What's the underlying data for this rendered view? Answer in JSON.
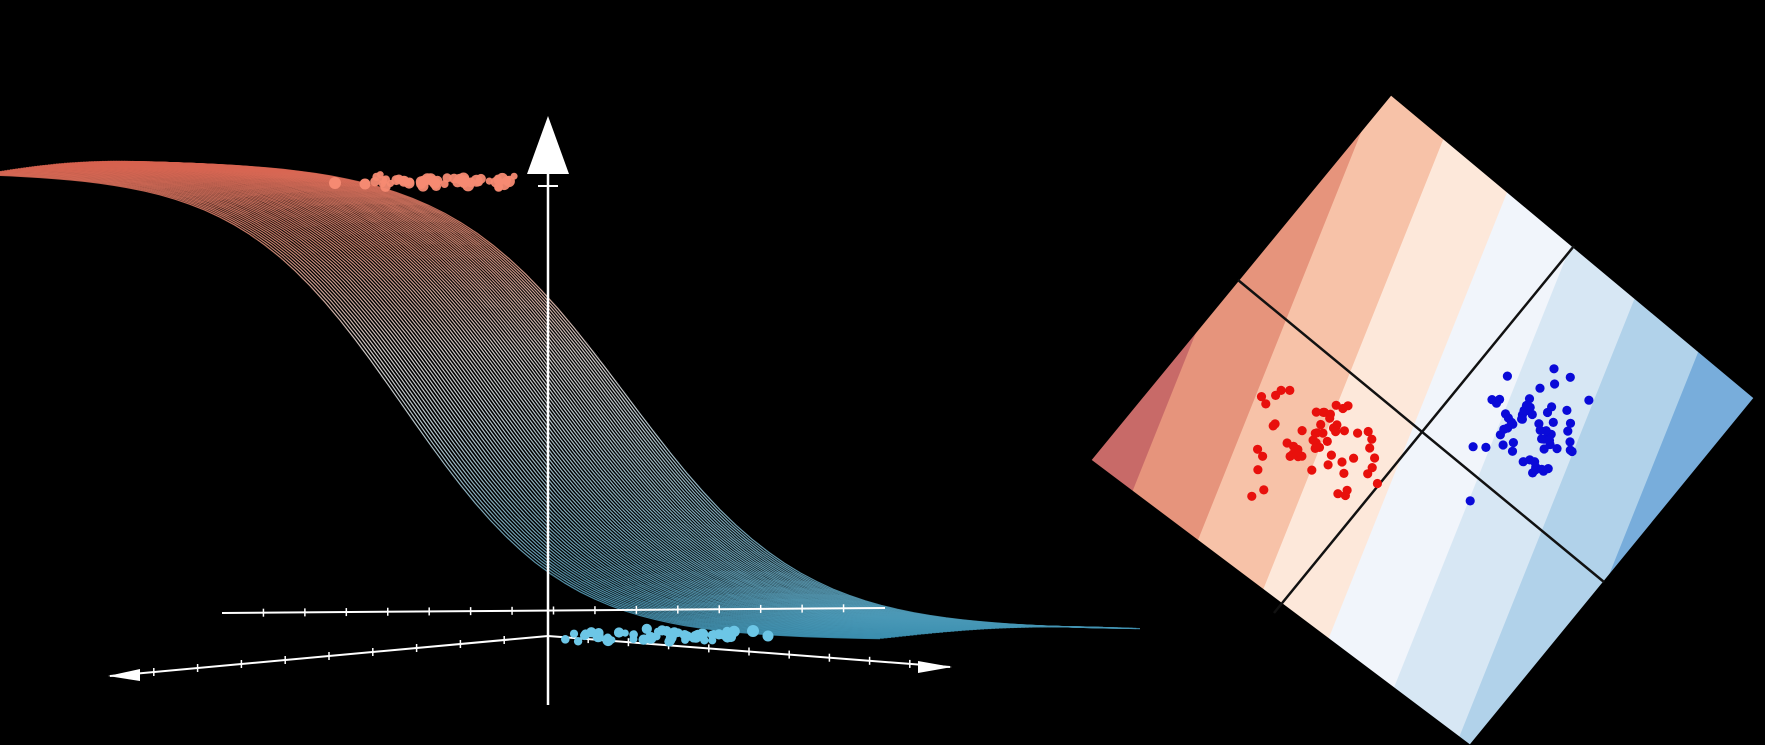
{
  "colors": {
    "background": "#000000",
    "surface_high": "#d65f4c",
    "surface_mid": "#ffffff",
    "surface_low": "#3a8fb0",
    "upper_points": "#f58a72",
    "lower_points": "#6cc6e6",
    "axis": "#ffffff",
    "class_red": "#e8100c",
    "class_blue": "#0a0ad8",
    "boundary": "#111111"
  },
  "panels": {
    "left": {
      "kind": "3d-sigmoid-surface",
      "axis_arrow": "arrow-icon"
    },
    "right": {
      "kind": "rotated-decision-map",
      "bands_red_to_blue": [
        "#c86a68",
        "#e6947c",
        "#f7c2a8",
        "#fde8da",
        "#f1f5fb",
        "#d7e7f4",
        "#b1d2ea",
        "#78addb",
        "#5f98cd"
      ],
      "red_cluster_count": 60,
      "blue_cluster_count": 60
    }
  }
}
